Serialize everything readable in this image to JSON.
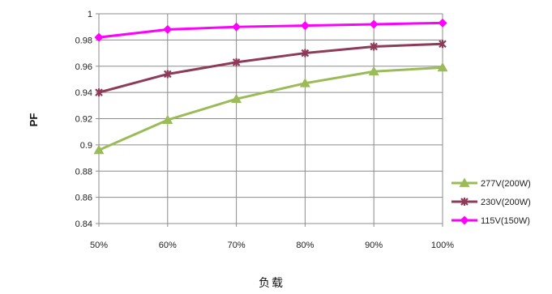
{
  "chart_data": {
    "type": "line",
    "title": "",
    "xlabel": "负载",
    "ylabel": "PF",
    "categories": [
      "50%",
      "60%",
      "70%",
      "80%",
      "90%",
      "100%"
    ],
    "ylim": [
      0.84,
      1.0
    ],
    "yticks": [
      0.84,
      0.86,
      0.88,
      0.9,
      0.92,
      0.94,
      0.96,
      0.98,
      1
    ],
    "ytick_labels": [
      "0.84",
      "0.86",
      "0.88",
      "0.9",
      "0.92",
      "0.94",
      "0.96",
      "0.98",
      "1"
    ],
    "grid": true,
    "legend_position": "right",
    "series": [
      {
        "name": "277V(200W)",
        "color": "#9bbb59",
        "marker": "triangle",
        "values": [
          0.896,
          0.919,
          0.935,
          0.947,
          0.956,
          0.959
        ]
      },
      {
        "name": "230V(200W)",
        "color": "#8e3a59",
        "marker": "star",
        "values": [
          0.94,
          0.954,
          0.963,
          0.97,
          0.975,
          0.977
        ]
      },
      {
        "name": "115V(150W)",
        "color": "#ff00ff",
        "marker": "diamond",
        "values": [
          0.982,
          0.988,
          0.99,
          0.991,
          0.992,
          0.993
        ]
      }
    ]
  }
}
